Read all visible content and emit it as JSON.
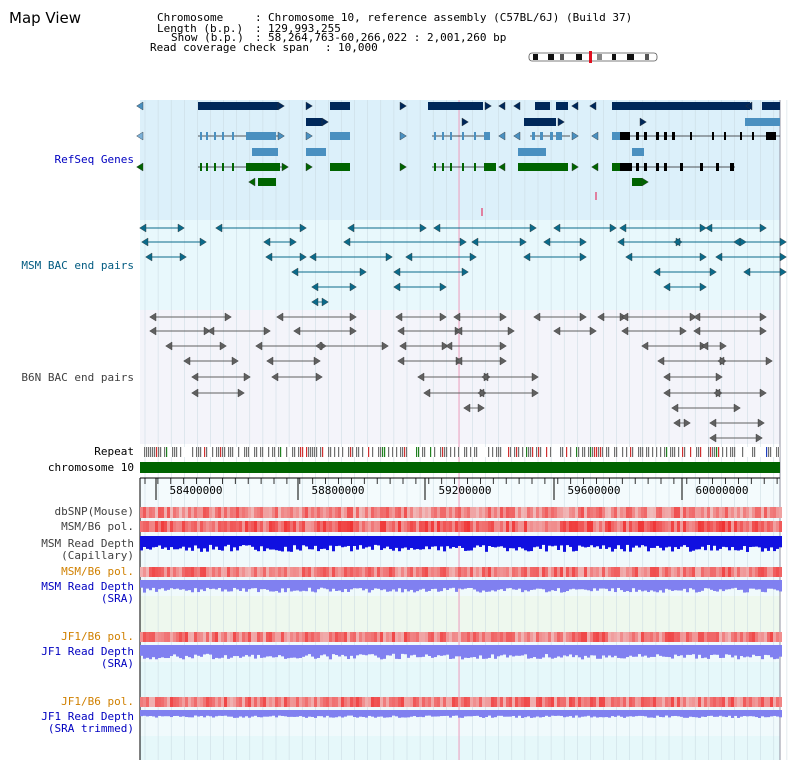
{
  "app_title": "Map View",
  "header": {
    "chromosome_key": "Chromosome",
    "chromosome_value": "Chromosome 10, reference assembly (C57BL/6J) (Build 37)",
    "length_key": "Length (b.p.)",
    "length_value": "129,993,255",
    "show_key": "Show (b.p.)",
    "show_value": "58,264,763-60,266,022 : 2,001,260 bp",
    "coverage_key": "Read coverage check span",
    "coverage_value": "10,000"
  },
  "tracks": {
    "refseq_genes": "RefSeq Genes",
    "msm_bac": "MSM BAC end pairs",
    "b6n_bac": "B6N BAC end pairs",
    "repeat": "Repeat",
    "chromosome": "chromosome 10",
    "dbsnp": "dbSNP(Mouse)",
    "msm_b6_pol": "MSM/B6 pol.",
    "msm_read_depth_cap_1": "MSM Read Depth",
    "msm_read_depth_cap_2": "(Capillary)",
    "msm_b6_pol_2": "MSM/B6 pol.",
    "msm_read_depth_sra_1": "MSM Read Depth",
    "msm_read_depth_sra_2": "(SRA)",
    "jf1_b6_pol": "JF1/B6 pol.",
    "jf1_read_depth_sra_1": "JF1 Read Depth",
    "jf1_read_depth_sra_2": "(SRA)",
    "jf1_b6_pol_2": "JF1/B6 pol.",
    "jf1_read_depth_trim_1": "JF1 Read Depth",
    "jf1_read_depth_trim_2": "(SRA trimmed)"
  },
  "axis": {
    "ticks": [
      "58400000",
      "58800000",
      "59200000",
      "59600000",
      "60000000"
    ]
  },
  "colors": {
    "refseq_bg": "#dcf0fa",
    "msm_bg": "#e8f8fc",
    "b6n_bg": "#f4f4fa",
    "navy": "#00285a",
    "steel": "#4a90c0",
    "green": "#006400",
    "teal": "#0a6a8a",
    "gray": "#606060",
    "chromosome": "#006400",
    "pol_red": "#f05050",
    "depth_blue": "#1010e0",
    "depth_light": "#8080f0"
  }
}
